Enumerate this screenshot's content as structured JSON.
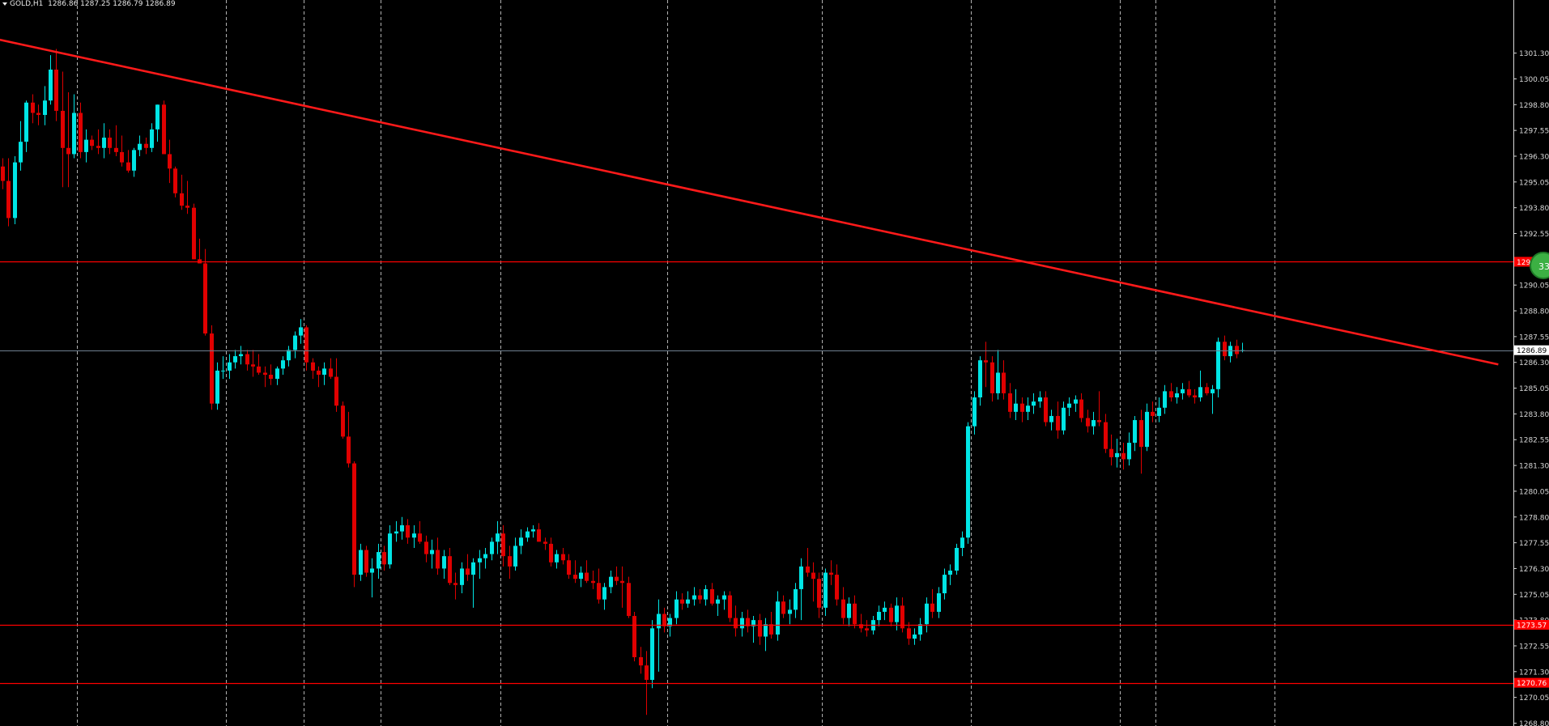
{
  "header": {
    "symbol": "GOLD,H1",
    "ohlc": "1286.86 1287.25 1286.79 1286.89"
  },
  "colors": {
    "background": "#000000",
    "bull": "#00e5e5",
    "bear": "#e00000",
    "trendline": "#ff1a1a",
    "level_line": "#ff0000",
    "bid_line": "#6f7f8f",
    "grid": "#d0d0d0",
    "axis_text": "#d8d8d8"
  },
  "badge": {
    "text": "33"
  },
  "chart_data": {
    "type": "candlestick",
    "ylim": [
      1268.8,
      1302.6
    ],
    "y_ticks": [
      "1301.30",
      "1300.05",
      "1298.80",
      "1297.55",
      "1296.30",
      "1295.05",
      "1293.80",
      "1292.55",
      "1291.30",
      "1290.05",
      "1288.80",
      "1287.55",
      "1286.30",
      "1285.05",
      "1283.80",
      "1282.55",
      "1281.30",
      "1280.05",
      "1278.80",
      "1277.55",
      "1276.30",
      "1275.05",
      "1273.80",
      "1272.55",
      "1271.30",
      "1270.05",
      "1268.80"
    ],
    "current_price": {
      "value": 1286.89,
      "label": "1286.89"
    },
    "horizontal_levels": [
      {
        "value": 1291.18,
        "label": "1291.18"
      },
      {
        "value": 1273.57,
        "label": "1273.57"
      },
      {
        "value": 1270.76,
        "label": "1270.76"
      }
    ],
    "trendline": {
      "from": {
        "bar": -0.5,
        "price": 1301.95
      },
      "to": {
        "bar": 251,
        "price": 1286.2
      }
    },
    "period_separators": [
      12.5,
      37.5,
      50.5,
      63.5,
      83.5,
      111.5,
      137.5,
      162.5,
      187.5,
      193.5,
      213.5
    ],
    "candles": [
      [
        1295.8,
        1296.2,
        1294.7,
        1295.1
      ],
      [
        1295.1,
        1296.2,
        1292.9,
        1293.3
      ],
      [
        1293.3,
        1296.3,
        1293.0,
        1296.0
      ],
      [
        1296.0,
        1298.0,
        1295.6,
        1297.0
      ],
      [
        1297.0,
        1299.0,
        1296.5,
        1298.9
      ],
      [
        1298.9,
        1299.3,
        1297.9,
        1298.4
      ],
      [
        1298.4,
        1298.8,
        1297.8,
        1298.3
      ],
      [
        1298.3,
        1299.7,
        1297.8,
        1299.0
      ],
      [
        1299.0,
        1301.2,
        1298.8,
        1300.5
      ],
      [
        1300.5,
        1301.5,
        1298.0,
        1298.5
      ],
      [
        1298.5,
        1300.4,
        1294.8,
        1296.7
      ],
      [
        1296.7,
        1299.4,
        1294.8,
        1296.4
      ],
      [
        1296.4,
        1299.3,
        1296.2,
        1298.4
      ],
      [
        1298.4,
        1298.9,
        1296.2,
        1296.5
      ],
      [
        1296.5,
        1297.6,
        1296.0,
        1297.1
      ],
      [
        1297.1,
        1297.3,
        1296.6,
        1296.8
      ],
      [
        1296.8,
        1297.6,
        1296.4,
        1296.7
      ],
      [
        1296.7,
        1297.9,
        1296.2,
        1297.2
      ],
      [
        1297.2,
        1297.6,
        1296.4,
        1296.7
      ],
      [
        1296.7,
        1297.8,
        1296.3,
        1296.5
      ],
      [
        1296.5,
        1297.3,
        1295.8,
        1296.0
      ],
      [
        1296.0,
        1296.6,
        1295.5,
        1295.6
      ],
      [
        1295.6,
        1296.7,
        1295.3,
        1296.6
      ],
      [
        1296.6,
        1297.3,
        1296.3,
        1296.9
      ],
      [
        1296.9,
        1297.2,
        1296.4,
        1296.7
      ],
      [
        1296.7,
        1297.9,
        1296.5,
        1297.6
      ],
      [
        1297.6,
        1298.8,
        1297.0,
        1298.8
      ],
      [
        1298.8,
        1299.0,
        1296.4,
        1296.4
      ],
      [
        1296.4,
        1297.1,
        1295.0,
        1295.7
      ],
      [
        1295.7,
        1295.8,
        1294.3,
        1294.5
      ],
      [
        1294.5,
        1295.4,
        1293.7,
        1293.9
      ],
      [
        1293.9,
        1295.1,
        1293.5,
        1293.8
      ],
      [
        1293.8,
        1294.0,
        1291.3,
        1291.3
      ],
      [
        1291.3,
        1292.3,
        1291.1,
        1291.1
      ],
      [
        1291.1,
        1291.8,
        1287.6,
        1287.7
      ],
      [
        1287.7,
        1288.1,
        1284.0,
        1284.3
      ],
      [
        1284.3,
        1286.3,
        1284.0,
        1285.9
      ],
      [
        1285.9,
        1286.6,
        1285.5,
        1285.9
      ],
      [
        1285.9,
        1286.7,
        1285.5,
        1286.3
      ],
      [
        1286.3,
        1286.9,
        1286.0,
        1286.6
      ],
      [
        1286.6,
        1287.1,
        1286.2,
        1286.7
      ],
      [
        1286.7,
        1286.9,
        1285.9,
        1286.2
      ],
      [
        1286.2,
        1286.9,
        1285.6,
        1286.1
      ],
      [
        1286.1,
        1286.7,
        1285.7,
        1285.8
      ],
      [
        1285.8,
        1286.1,
        1285.1,
        1285.7
      ],
      [
        1285.7,
        1286.2,
        1285.2,
        1285.5
      ],
      [
        1285.5,
        1286.1,
        1285.2,
        1286.0
      ],
      [
        1286.0,
        1286.6,
        1285.7,
        1286.4
      ],
      [
        1286.4,
        1287.1,
        1286.1,
        1286.9
      ],
      [
        1286.9,
        1287.8,
        1286.5,
        1287.6
      ],
      [
        1287.6,
        1288.4,
        1287.2,
        1288.0
      ],
      [
        1288.0,
        1288.1,
        1285.9,
        1286.3
      ],
      [
        1286.3,
        1286.5,
        1285.5,
        1285.9
      ],
      [
        1285.9,
        1286.1,
        1285.1,
        1285.7
      ],
      [
        1285.7,
        1286.3,
        1285.2,
        1286.0
      ],
      [
        1286.0,
        1286.5,
        1285.5,
        1285.6
      ],
      [
        1285.6,
        1286.5,
        1283.9,
        1284.2
      ],
      [
        1284.2,
        1284.4,
        1282.6,
        1282.7
      ],
      [
        1282.7,
        1283.9,
        1281.2,
        1281.4
      ],
      [
        1281.4,
        1281.5,
        1275.4,
        1276.0
      ],
      [
        1276.0,
        1277.5,
        1275.7,
        1277.2
      ],
      [
        1277.2,
        1277.4,
        1275.9,
        1276.1
      ],
      [
        1276.1,
        1276.8,
        1274.9,
        1276.3
      ],
      [
        1276.3,
        1277.5,
        1275.8,
        1277.1
      ],
      [
        1277.1,
        1277.4,
        1276.2,
        1276.5
      ],
      [
        1276.5,
        1278.4,
        1276.3,
        1278.0
      ],
      [
        1278.0,
        1278.6,
        1277.6,
        1278.1
      ],
      [
        1278.1,
        1278.8,
        1277.7,
        1278.4
      ],
      [
        1278.4,
        1278.7,
        1277.5,
        1277.8
      ],
      [
        1277.8,
        1278.4,
        1277.3,
        1278.0
      ],
      [
        1278.0,
        1278.6,
        1277.5,
        1277.6
      ],
      [
        1277.6,
        1277.9,
        1276.6,
        1277.0
      ],
      [
        1277.0,
        1277.7,
        1276.3,
        1277.2
      ],
      [
        1277.2,
        1277.8,
        1276.0,
        1276.3
      ],
      [
        1276.3,
        1277.2,
        1275.8,
        1276.9
      ],
      [
        1276.9,
        1277.3,
        1275.5,
        1275.6
      ],
      [
        1275.6,
        1276.1,
        1274.8,
        1275.5
      ],
      [
        1275.5,
        1276.6,
        1275.1,
        1276.3
      ],
      [
        1276.3,
        1277.0,
        1275.7,
        1276.0
      ],
      [
        1276.0,
        1276.8,
        1274.4,
        1276.6
      ],
      [
        1276.6,
        1277.2,
        1275.8,
        1276.8
      ],
      [
        1276.8,
        1277.3,
        1276.3,
        1277.0
      ],
      [
        1277.0,
        1277.8,
        1276.7,
        1277.6
      ],
      [
        1277.6,
        1278.6,
        1277.0,
        1278.0
      ],
      [
        1278.0,
        1278.4,
        1276.4,
        1276.9
      ],
      [
        1276.9,
        1277.4,
        1275.8,
        1276.4
      ],
      [
        1276.4,
        1277.8,
        1276.2,
        1277.4
      ],
      [
        1277.4,
        1278.2,
        1277.0,
        1277.8
      ],
      [
        1277.8,
        1278.3,
        1277.6,
        1278.1
      ],
      [
        1278.1,
        1278.4,
        1277.8,
        1278.2
      ],
      [
        1278.2,
        1278.5,
        1277.6,
        1277.6
      ],
      [
        1277.6,
        1277.8,
        1277.2,
        1277.5
      ],
      [
        1277.5,
        1277.8,
        1276.4,
        1276.6
      ],
      [
        1276.6,
        1277.2,
        1276.3,
        1277.0
      ],
      [
        1277.0,
        1277.3,
        1276.5,
        1276.7
      ],
      [
        1276.7,
        1277.0,
        1275.8,
        1276.0
      ],
      [
        1276.0,
        1276.7,
        1275.6,
        1275.8
      ],
      [
        1275.8,
        1276.4,
        1275.4,
        1276.1
      ],
      [
        1276.1,
        1276.7,
        1275.6,
        1275.7
      ],
      [
        1275.7,
        1276.2,
        1275.3,
        1275.6
      ],
      [
        1275.6,
        1276.3,
        1274.6,
        1274.8
      ],
      [
        1274.8,
        1275.6,
        1274.3,
        1275.4
      ],
      [
        1275.4,
        1276.2,
        1275.1,
        1275.9
      ],
      [
        1275.9,
        1276.4,
        1275.5,
        1275.7
      ],
      [
        1275.7,
        1276.4,
        1274.4,
        1275.6
      ],
      [
        1275.6,
        1275.9,
        1273.9,
        1274.0
      ],
      [
        1274.0,
        1274.2,
        1271.8,
        1272.0
      ],
      [
        1272.0,
        1272.5,
        1271.2,
        1271.6
      ],
      [
        1271.6,
        1272.3,
        1269.2,
        1270.9
      ],
      [
        1270.9,
        1273.8,
        1270.5,
        1273.4
      ],
      [
        1273.4,
        1274.8,
        1271.3,
        1274.1
      ],
      [
        1274.1,
        1274.4,
        1273.2,
        1273.5
      ],
      [
        1273.5,
        1274.1,
        1273.0,
        1273.9
      ],
      [
        1273.9,
        1275.2,
        1273.6,
        1274.8
      ],
      [
        1274.8,
        1275.1,
        1274.3,
        1274.6
      ],
      [
        1274.6,
        1275.2,
        1274.4,
        1274.8
      ],
      [
        1274.8,
        1275.4,
        1274.5,
        1275.0
      ],
      [
        1275.0,
        1275.3,
        1274.6,
        1274.8
      ],
      [
        1274.8,
        1275.5,
        1274.5,
        1275.3
      ],
      [
        1275.3,
        1275.6,
        1274.5,
        1274.6
      ],
      [
        1274.6,
        1275.0,
        1274.0,
        1274.8
      ],
      [
        1274.8,
        1275.2,
        1274.3,
        1275.0
      ],
      [
        1275.0,
        1275.2,
        1273.7,
        1273.9
      ],
      [
        1273.9,
        1274.5,
        1273.0,
        1273.4
      ],
      [
        1273.4,
        1274.2,
        1273.0,
        1273.9
      ],
      [
        1273.9,
        1274.3,
        1273.2,
        1273.5
      ],
      [
        1273.5,
        1274.0,
        1272.7,
        1273.8
      ],
      [
        1273.8,
        1274.1,
        1272.6,
        1273.0
      ],
      [
        1273.0,
        1273.9,
        1272.3,
        1273.6
      ],
      [
        1273.6,
        1274.2,
        1272.9,
        1273.1
      ],
      [
        1273.1,
        1275.2,
        1272.8,
        1274.7
      ],
      [
        1274.7,
        1275.0,
        1273.9,
        1274.1
      ],
      [
        1274.1,
        1274.8,
        1273.6,
        1274.3
      ],
      [
        1274.3,
        1275.6,
        1273.9,
        1275.3
      ],
      [
        1275.3,
        1276.8,
        1273.8,
        1276.4
      ],
      [
        1276.4,
        1277.3,
        1275.9,
        1276.1
      ],
      [
        1276.1,
        1276.6,
        1274.7,
        1275.8
      ],
      [
        1275.8,
        1276.1,
        1273.9,
        1274.4
      ],
      [
        1274.4,
        1276.3,
        1274.0,
        1276.1
      ],
      [
        1276.1,
        1276.7,
        1275.5,
        1276.0
      ],
      [
        1276.0,
        1276.5,
        1274.5,
        1274.8
      ],
      [
        1274.8,
        1275.4,
        1273.6,
        1273.9
      ],
      [
        1273.9,
        1274.9,
        1273.5,
        1274.6
      ],
      [
        1274.6,
        1275.0,
        1273.4,
        1273.6
      ],
      [
        1273.6,
        1274.1,
        1273.2,
        1273.4
      ],
      [
        1273.4,
        1273.8,
        1273.0,
        1273.3
      ],
      [
        1273.3,
        1274.0,
        1273.1,
        1273.8
      ],
      [
        1273.8,
        1274.5,
        1273.5,
        1274.2
      ],
      [
        1274.2,
        1274.7,
        1273.8,
        1274.4
      ],
      [
        1274.4,
        1274.6,
        1273.5,
        1273.7
      ],
      [
        1273.7,
        1274.9,
        1273.3,
        1274.5
      ],
      [
        1274.5,
        1274.9,
        1273.2,
        1273.4
      ],
      [
        1273.4,
        1273.7,
        1272.6,
        1272.9
      ],
      [
        1272.9,
        1273.4,
        1272.6,
        1273.1
      ],
      [
        1273.1,
        1273.9,
        1272.8,
        1273.6
      ],
      [
        1273.6,
        1274.9,
        1273.2,
        1274.6
      ],
      [
        1274.6,
        1275.3,
        1273.9,
        1274.2
      ],
      [
        1274.2,
        1275.4,
        1273.9,
        1275.1
      ],
      [
        1275.1,
        1276.3,
        1274.8,
        1276.0
      ],
      [
        1276.0,
        1276.5,
        1275.5,
        1276.2
      ],
      [
        1276.2,
        1277.5,
        1276.0,
        1277.3
      ],
      [
        1277.3,
        1278.1,
        1276.9,
        1277.8
      ],
      [
        1277.8,
        1283.4,
        1277.5,
        1283.2
      ],
      [
        1283.2,
        1284.9,
        1282.8,
        1284.6
      ],
      [
        1284.6,
        1286.6,
        1284.2,
        1286.4
      ],
      [
        1286.4,
        1287.3,
        1285.1,
        1286.3
      ],
      [
        1286.3,
        1286.6,
        1284.4,
        1284.8
      ],
      [
        1284.8,
        1286.9,
        1284.5,
        1285.8
      ],
      [
        1285.8,
        1286.4,
        1284.5,
        1284.8
      ],
      [
        1284.8,
        1285.3,
        1283.6,
        1283.9
      ],
      [
        1283.9,
        1285.0,
        1283.5,
        1284.3
      ],
      [
        1284.3,
        1284.6,
        1283.4,
        1283.9
      ],
      [
        1283.9,
        1284.6,
        1283.5,
        1284.2
      ],
      [
        1284.2,
        1284.8,
        1283.8,
        1284.4
      ],
      [
        1284.4,
        1284.9,
        1284.1,
        1284.6
      ],
      [
        1284.6,
        1284.9,
        1283.2,
        1283.4
      ],
      [
        1283.4,
        1284.0,
        1283.0,
        1283.7
      ],
      [
        1283.7,
        1284.4,
        1282.6,
        1283.0
      ],
      [
        1283.0,
        1284.4,
        1282.8,
        1284.1
      ],
      [
        1284.1,
        1284.6,
        1283.7,
        1284.3
      ],
      [
        1284.3,
        1284.7,
        1283.9,
        1284.5
      ],
      [
        1284.5,
        1284.8,
        1283.4,
        1283.6
      ],
      [
        1283.6,
        1284.0,
        1282.9,
        1283.2
      ],
      [
        1283.2,
        1283.9,
        1282.8,
        1283.5
      ],
      [
        1283.5,
        1284.9,
        1283.2,
        1283.4
      ],
      [
        1283.4,
        1283.8,
        1281.9,
        1282.1
      ],
      [
        1282.1,
        1282.8,
        1281.3,
        1281.7
      ],
      [
        1281.7,
        1282.6,
        1281.2,
        1281.9
      ],
      [
        1281.9,
        1282.4,
        1281.1,
        1281.6
      ],
      [
        1281.6,
        1282.9,
        1281.3,
        1282.4
      ],
      [
        1282.4,
        1283.7,
        1282.0,
        1283.5
      ],
      [
        1283.5,
        1284.0,
        1280.9,
        1282.2
      ],
      [
        1282.2,
        1284.3,
        1282.0,
        1283.9
      ],
      [
        1283.9,
        1284.4,
        1283.4,
        1283.7
      ],
      [
        1283.7,
        1284.6,
        1283.4,
        1284.1
      ],
      [
        1284.1,
        1285.2,
        1283.8,
        1284.9
      ],
      [
        1284.9,
        1285.3,
        1284.4,
        1284.6
      ],
      [
        1284.6,
        1285.1,
        1284.3,
        1284.8
      ],
      [
        1284.8,
        1285.3,
        1284.5,
        1285.0
      ],
      [
        1285.0,
        1285.4,
        1284.6,
        1284.7
      ],
      [
        1284.7,
        1285.0,
        1284.3,
        1284.6
      ],
      [
        1284.6,
        1285.9,
        1284.4,
        1285.1
      ],
      [
        1285.1,
        1285.3,
        1284.7,
        1284.8
      ],
      [
        1284.8,
        1285.2,
        1283.8,
        1285.0
      ],
      [
        1285.0,
        1287.5,
        1284.6,
        1287.3
      ],
      [
        1287.3,
        1287.6,
        1286.4,
        1286.6
      ],
      [
        1286.6,
        1287.3,
        1286.3,
        1287.1
      ],
      [
        1287.1,
        1287.4,
        1286.5,
        1286.7
      ],
      [
        1286.86,
        1287.25,
        1286.79,
        1286.89
      ]
    ]
  }
}
